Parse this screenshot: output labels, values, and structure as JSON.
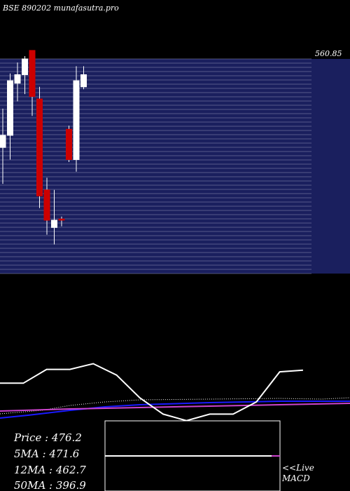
{
  "header": {
    "title": "BSE 890202 munafasutra.pro"
  },
  "colors": {
    "background": "#000000",
    "panel": "#1a1f5e",
    "grid": "#8f93b8",
    "up_candle": "#ffffff",
    "down_candle": "#cc0000",
    "price_line": "#ffffff",
    "ma_blue": "#1a1aff",
    "ma_magenta": "#cc44cc",
    "dotted": "#ffffff",
    "macd_line": "#ffffff"
  },
  "chart_data": [
    {
      "type": "candlestick",
      "title": "BSE 890202 munafasutra.pro",
      "ylim": [
        386,
        563
      ],
      "top_label": "560.85",
      "candles": [
        {
          "o": 490,
          "c": 500,
          "h": 522,
          "l": 460
        },
        {
          "o": 500,
          "c": 545,
          "h": 551,
          "l": 480
        },
        {
          "o": 543,
          "c": 550,
          "h": 560,
          "l": 528
        },
        {
          "o": 550,
          "c": 563,
          "h": 583,
          "l": 534
        },
        {
          "o": 570,
          "c": 532,
          "h": 596,
          "l": 516
        },
        {
          "o": 530,
          "c": 450,
          "h": 540,
          "l": 440
        },
        {
          "o": 455,
          "c": 430,
          "h": 465,
          "l": 418
        },
        {
          "o": 424,
          "c": 430,
          "h": 455,
          "l": 410
        },
        {
          "o": 431,
          "c": 430,
          "h": 433,
          "l": 425
        },
        {
          "o": 505,
          "c": 480,
          "h": 508,
          "l": 478
        },
        {
          "o": 480,
          "c": 545,
          "h": 557,
          "l": 470
        },
        {
          "o": 540,
          "c": 550,
          "h": 557,
          "l": 538
        }
      ]
    },
    {
      "type": "line",
      "x": [
        0,
        1,
        2,
        3,
        4,
        5,
        6,
        7,
        8,
        9,
        10,
        11,
        12,
        13
      ],
      "series": [
        {
          "values": [
            0.28,
            0.28,
            0.45,
            0.45,
            0.52,
            0.38,
            0.1,
            -0.1,
            -0.18,
            -0.1,
            -0.1,
            0.05,
            0.42,
            0.44
          ]
        }
      ]
    }
  ],
  "stats": {
    "price": "Price   : 476.2",
    "ma5": "5MA : 471.6",
    "ma12": "12MA : 462.7",
    "ma50": "50MA : 396.9"
  },
  "macd": {
    "label_line1": "<<Live",
    "label_line2": "MACD"
  }
}
